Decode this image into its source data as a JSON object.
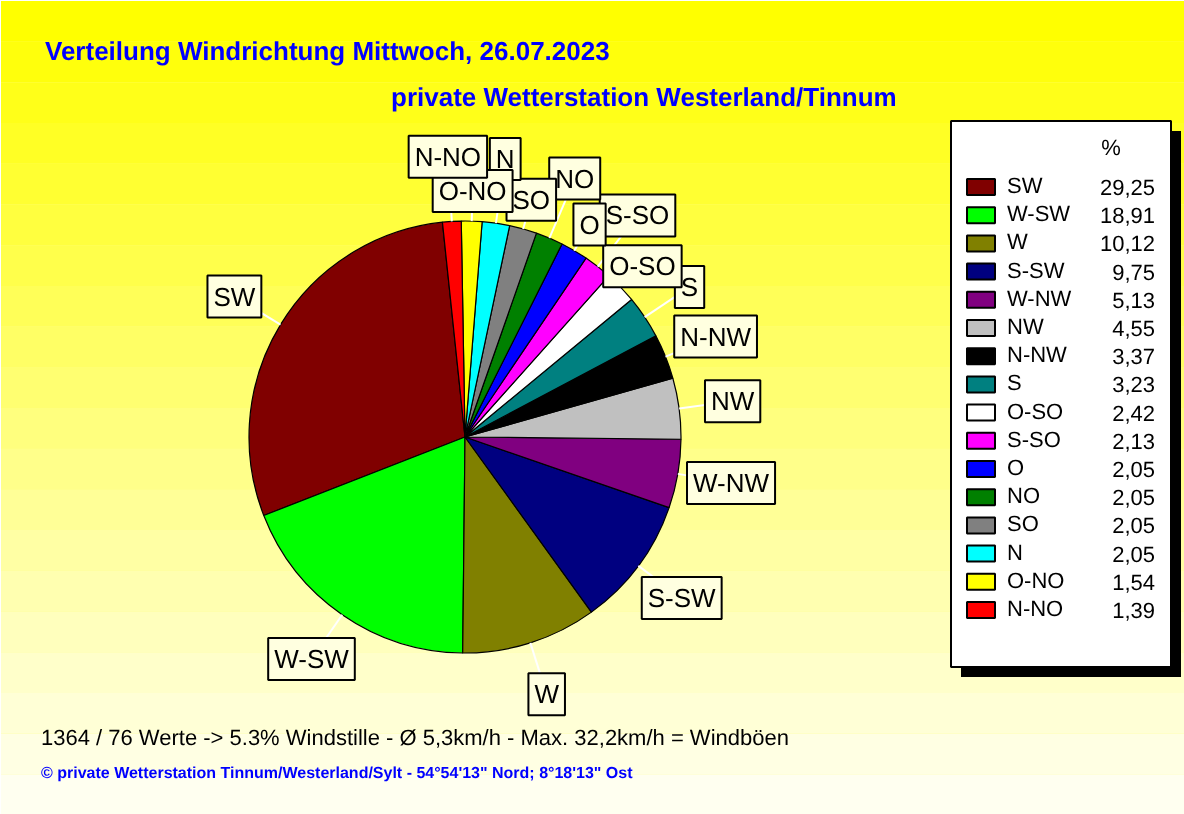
{
  "chart_data": {
    "type": "pie",
    "title": "Verteilung Windrichtung   Mittwoch, 26.07.2023",
    "subtitle": "private Wetterstation Westerland/Tinnum",
    "legend_title": "%",
    "legend": "right",
    "categories": [
      "SW",
      "W-SW",
      "W",
      "S-SW",
      "W-NW",
      "NW",
      "N-NW",
      "S",
      "O-SO",
      "S-SO",
      "O",
      "NO",
      "SO",
      "N",
      "O-NO",
      "N-NO"
    ],
    "values": [
      29.25,
      18.91,
      10.12,
      9.75,
      5.13,
      4.55,
      3.37,
      3.23,
      2.42,
      2.13,
      2.05,
      2.05,
      2.05,
      2.05,
      1.54,
      1.39
    ],
    "value_labels": [
      "29,25",
      "18,91",
      "10,12",
      "9,75",
      "5,13",
      "4,55",
      "3,37",
      "3,23",
      "2,42",
      "2,13",
      "2,05",
      "2,05",
      "2,05",
      "2,05",
      "1,54",
      "1,39"
    ],
    "colors": [
      "#800000",
      "#00ff00",
      "#808000",
      "#000080",
      "#800080",
      "#c0c0c0",
      "#000000",
      "#008080",
      "#ffffff",
      "#ff00ff",
      "#0000ff",
      "#008000",
      "#808080",
      "#00ffff",
      "#ffff00",
      "#ff0000"
    ],
    "annotations": [
      "1364 / 76 Werte  -> 5.3% Windstille   -   Ø 5,3km/h  -  Max. 32,2km/h = Windböen",
      "© private Wetterstation Tinnum/Westerland/Sylt   -   54°54'13\" Nord; 8°18'13\" Ost"
    ]
  }
}
